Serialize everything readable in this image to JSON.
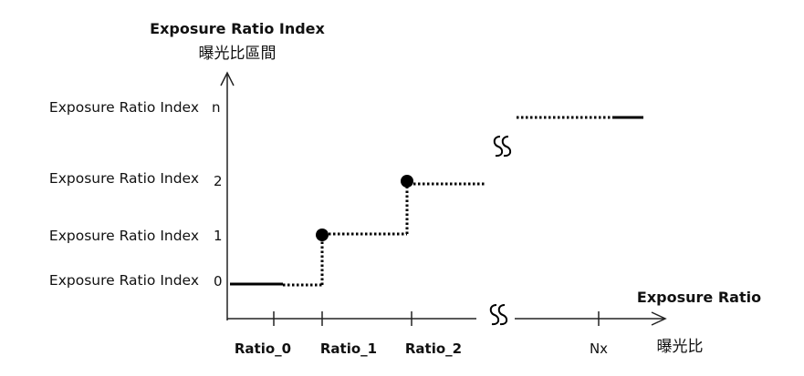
{
  "y_axis": {
    "title": "Exposure Ratio Index",
    "subtitle": "曝光比區間"
  },
  "x_axis": {
    "title": "Exposure Ratio",
    "subtitle": "曝光比"
  },
  "left_labels": [
    "Exposure Ratio Index",
    "Exposure Ratio Index",
    "Exposure Ratio Index",
    "Exposure Ratio Index"
  ],
  "y_ticks": [
    "n",
    "2",
    "1",
    "0"
  ],
  "x_ticks": [
    "Ratio_0",
    "Ratio_1",
    "Ratio_2",
    "Nx"
  ],
  "break_symbol": "SS"
}
